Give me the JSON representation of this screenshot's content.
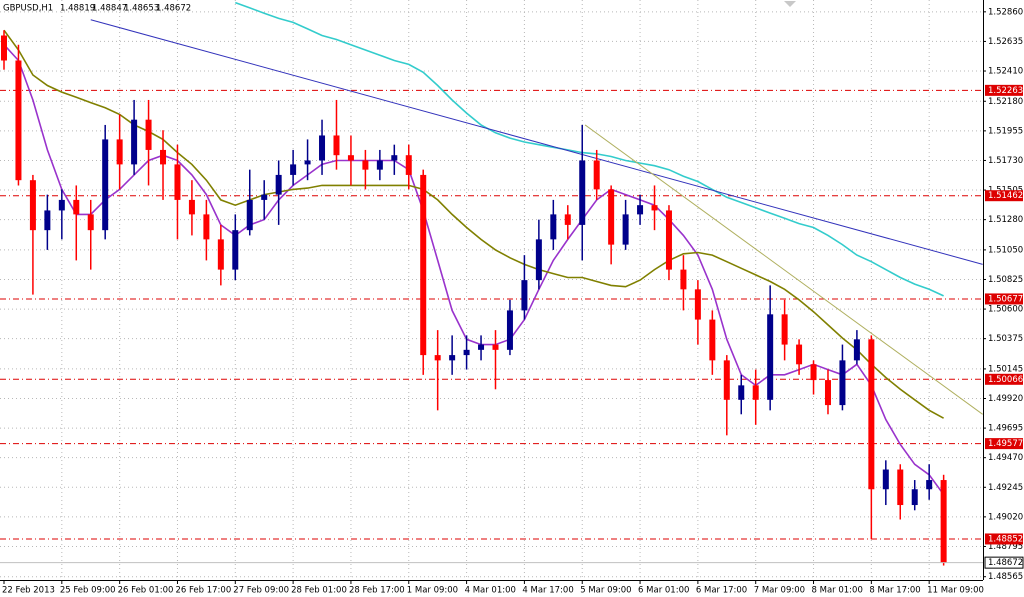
{
  "chart_data": {
    "type": "candlestick",
    "title": "GBPUSD,H1",
    "header_values": [
      1.48819,
      1.48847,
      1.48653,
      1.48672
    ],
    "categories": [
      "22 Feb 2013",
      null,
      null,
      null,
      "25 Feb 09:00",
      null,
      null,
      null,
      "26 Feb 01:00",
      null,
      null,
      null,
      "26 Feb 17:00",
      null,
      null,
      null,
      "27 Feb 09:00",
      null,
      null,
      null,
      "28 Feb 01:00",
      null,
      null,
      null,
      "28 Feb 17:00",
      null,
      null,
      null,
      "1 Mar 09:00",
      null,
      null,
      null,
      "4 Mar 01:00",
      null,
      null,
      null,
      "4 Mar 17:00",
      null,
      null,
      null,
      "5 Mar 09:00",
      null,
      null,
      null,
      "6 Mar 01:00",
      null,
      null,
      null,
      "6 Mar 17:00",
      null,
      null,
      null,
      "7 Mar 09:00",
      null,
      null,
      null,
      "8 Mar 01:00",
      null,
      null,
      null,
      "8 Mar 17:00",
      null,
      null,
      null,
      "11 Mar 09:00",
      null
    ],
    "open": [
      1.5268,
      1.5249,
      1.5158,
      1.512,
      1.5135,
      1.5143,
      1.5132,
      1.512,
      1.5189,
      1.517,
      1.5204,
      1.5181,
      1.517,
      1.5143,
      1.5132,
      1.5113,
      1.509,
      1.512,
      1.5143,
      1.5147,
      1.5162,
      1.517,
      1.5173,
      1.5192,
      1.5177,
      1.5173,
      1.5166,
      1.5173,
      1.5177,
      1.5162,
      1.5025,
      1.5021,
      1.5025,
      1.5029,
      1.5033,
      1.5029,
      1.5059,
      1.5082,
      1.5113,
      1.5132,
      1.5124,
      1.5173,
      1.5151,
      1.5109,
      1.5132,
      1.5139,
      1.5135,
      1.509,
      1.5075,
      1.5052,
      1.5021,
      1.4991,
      1.5002,
      1.4991,
      1.5056,
      1.5033,
      1.5018,
      1.5006,
      1.4987,
      1.5021,
      1.5037,
      1.4923,
      1.4938,
      1.4911,
      1.4923,
      1.493
    ],
    "high": [
      1.5272,
      1.5261,
      1.5162,
      1.5147,
      1.5151,
      1.5154,
      1.5143,
      1.52,
      1.5208,
      1.5219,
      1.5219,
      1.5196,
      1.5185,
      1.5158,
      1.5143,
      1.5124,
      1.5132,
      1.5166,
      1.5158,
      1.5173,
      1.5181,
      1.5189,
      1.5204,
      1.5219,
      1.5192,
      1.5181,
      1.5181,
      1.5185,
      1.5185,
      1.5166,
      1.5044,
      1.504,
      1.504,
      1.504,
      1.5044,
      1.5067,
      1.5101,
      1.5128,
      1.5143,
      1.5139,
      1.52,
      1.5181,
      1.5154,
      1.5143,
      1.5147,
      1.5154,
      1.5139,
      1.5101,
      1.5082,
      1.5059,
      1.5025,
      1.501,
      1.5014,
      1.5078,
      1.5067,
      1.5037,
      1.5021,
      1.5014,
      1.5033,
      1.5044,
      1.504,
      1.4945,
      1.4942,
      1.493,
      1.4942,
      1.4934
    ],
    "low": [
      1.5242,
      1.5154,
      1.5071,
      1.5105,
      1.5113,
      1.5097,
      1.509,
      1.5113,
      1.5151,
      1.5162,
      1.5154,
      1.5143,
      1.5113,
      1.5116,
      1.5097,
      1.5078,
      1.5082,
      1.5116,
      1.5128,
      1.5124,
      1.5154,
      1.5158,
      1.5162,
      1.5166,
      1.5154,
      1.5151,
      1.5158,
      1.5162,
      1.5151,
      1.501,
      1.4983,
      1.501,
      1.5014,
      1.5021,
      1.4999,
      1.5025,
      1.5052,
      1.5075,
      1.5105,
      1.5113,
      1.5097,
      1.5143,
      1.5094,
      1.5105,
      1.5124,
      1.512,
      1.5082,
      1.5059,
      1.5033,
      1.501,
      1.4964,
      1.498,
      1.4972,
      1.4983,
      1.5021,
      1.501,
      1.4995,
      1.498,
      1.4983,
      1.5018,
      1.4885,
      1.4911,
      1.49,
      1.4907,
      1.4915,
      1.4865
    ],
    "close": [
      1.5249,
      1.5158,
      1.512,
      1.5135,
      1.5143,
      1.5132,
      1.512,
      1.5189,
      1.517,
      1.5204,
      1.5181,
      1.517,
      1.5143,
      1.5132,
      1.5113,
      1.509,
      1.512,
      1.5143,
      1.5147,
      1.5162,
      1.517,
      1.5173,
      1.5192,
      1.5177,
      1.5173,
      1.5166,
      1.5173,
      1.5177,
      1.5162,
      1.5025,
      1.5021,
      1.5025,
      1.5029,
      1.5033,
      1.5029,
      1.5059,
      1.5082,
      1.5113,
      1.5132,
      1.5124,
      1.5173,
      1.5151,
      1.5109,
      1.5132,
      1.5139,
      1.5135,
      1.509,
      1.5075,
      1.5052,
      1.5021,
      1.4991,
      1.5002,
      1.4991,
      1.5056,
      1.5033,
      1.5018,
      1.5006,
      1.4987,
      1.5021,
      1.5037,
      1.4923,
      1.4938,
      1.4911,
      1.4923,
      1.493,
      1.4867
    ],
    "up_color": "#00008b",
    "down_color": "#ff0000",
    "series": [
      {
        "color": "#9933cc",
        "values": [
          1.5261,
          1.5249,
          1.5219,
          1.5181,
          1.5151,
          1.5132,
          1.5132,
          1.5143,
          1.5151,
          1.5162,
          1.5173,
          1.5177,
          1.5173,
          1.5162,
          1.5147,
          1.5124,
          1.5116,
          1.5124,
          1.5128,
          1.5143,
          1.5154,
          1.5162,
          1.517,
          1.5173,
          1.5173,
          1.5173,
          1.5173,
          1.5173,
          1.5166,
          1.5135,
          1.5097,
          1.5059,
          1.5037,
          1.5033,
          1.5033,
          1.5037,
          1.5052,
          1.5075,
          1.5097,
          1.5113,
          1.5128,
          1.5143,
          1.5151,
          1.5147,
          1.5143,
          1.5139,
          1.5128,
          1.5116,
          1.5101,
          1.5075,
          1.5037,
          1.501,
          1.5002,
          1.501,
          1.501,
          1.5014,
          1.5018,
          1.5014,
          1.501,
          1.5018,
          1.5002,
          1.4976,
          1.4957,
          1.4942,
          1.4934,
          1.4919
        ]
      },
      {
        "color": "#808000",
        "values": [
          1.5272,
          1.5257,
          1.5238,
          1.523,
          1.5225,
          1.5221,
          1.5217,
          1.5213,
          1.5208,
          1.52,
          1.5195,
          1.5189,
          1.5179,
          1.517,
          1.5158,
          1.5143,
          1.5139,
          1.5143,
          1.5147,
          1.5149,
          1.5151,
          1.5152,
          1.5154,
          1.5154,
          1.5154,
          1.5154,
          1.5154,
          1.5154,
          1.5154,
          1.5151,
          1.5143,
          1.5132,
          1.5122,
          1.5113,
          1.5105,
          1.5099,
          1.5094,
          1.509,
          1.5087,
          1.5084,
          1.5084,
          1.5081,
          1.5078,
          1.5077,
          1.5082,
          1.509,
          1.5097,
          1.5102,
          1.5103,
          1.5101,
          1.5096,
          1.5091,
          1.5086,
          1.5081,
          1.5075,
          1.5067,
          1.5058,
          1.5048,
          1.5038,
          1.5029,
          1.5018,
          1.5008,
          1.4999,
          1.4991,
          1.4983,
          1.4977
        ]
      },
      {
        "color": "#33cccc",
        "values": [
          null,
          null,
          null,
          null,
          null,
          null,
          null,
          null,
          null,
          null,
          null,
          null,
          null,
          null,
          null,
          null,
          1.5293,
          1.5289,
          1.5285,
          1.5281,
          1.5278,
          1.5273,
          1.5268,
          1.5265,
          1.5261,
          1.5257,
          1.5253,
          1.5249,
          1.5246,
          1.524,
          1.523,
          1.5219,
          1.5209,
          1.52,
          1.5194,
          1.519,
          1.5187,
          1.5185,
          1.5183,
          1.5181,
          1.5179,
          1.5178,
          1.5176,
          1.5173,
          1.5171,
          1.5169,
          1.5166,
          1.5161,
          1.5157,
          1.5151,
          1.5145,
          1.5141,
          1.5137,
          1.5133,
          1.5129,
          1.5125,
          1.5122,
          1.5116,
          1.5109,
          1.5101,
          1.5096,
          1.509,
          1.5084,
          1.5079,
          1.5075,
          1.507
        ]
      }
    ],
    "trendlines": [
      {
        "color": "#3333bb",
        "x": [
          6.0,
          67.7
        ],
        "y": [
          1.528,
          1.5094
        ]
      },
      {
        "color": "#b0b060",
        "x": [
          40.2,
          67.7
        ],
        "y": [
          1.52,
          1.498
        ]
      }
    ],
    "levels": {
      "color": "#dd0000",
      "values": [
        1.52263,
        1.51462,
        1.50677,
        1.50066,
        1.49577,
        1.48852
      ]
    },
    "last_price": 1.48672,
    "ylim": [
      1.4854,
      1.5295
    ],
    "yticks": [
      {
        "value": 1.5286,
        "label": "1.52860"
      },
      1.52635,
      {
        "value": 1.5241,
        "label": "1.52410"
      },
      {
        "value": 1.5218,
        "label": "1.52180"
      },
      1.51955,
      {
        "value": 1.5173,
        "label": "1.51730"
      },
      1.51505,
      {
        "value": 1.5128,
        "label": "1.51280"
      },
      {
        "value": 1.5105,
        "label": "1.51050"
      },
      1.50825,
      {
        "value": 1.506,
        "label": "1.50600"
      },
      1.50375,
      1.50145,
      {
        "value": 1.4992,
        "label": "1.49920"
      },
      1.49695,
      {
        "value": 1.4947,
        "label": "1.49470"
      },
      1.49245,
      {
        "value": 1.4902,
        "label": "1.49020"
      },
      1.48795,
      1.48565
    ],
    "grid": true
  }
}
